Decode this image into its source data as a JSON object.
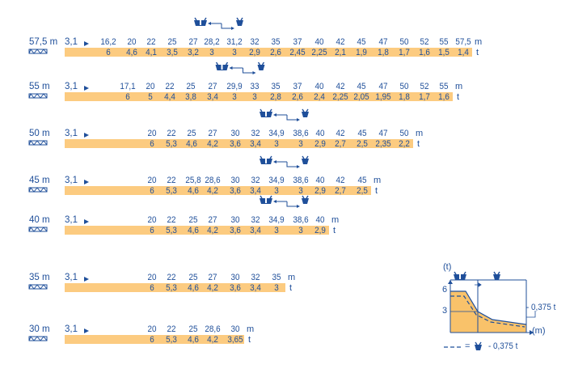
{
  "chart_data": {
    "type": "table",
    "start_radius": "3,1",
    "rows": [
      {
        "boom": "57,5 m",
        "radii": [
          "16,2",
          "20",
          "22",
          "25",
          "27",
          "28,2",
          "31,2",
          "32",
          "35",
          "37",
          "40",
          "42",
          "45",
          "47",
          "50",
          "52",
          "55",
          "57,5"
        ],
        "radius_unit": "m",
        "loads": [
          "6",
          "4,6",
          "4,1",
          "3,5",
          "3,2",
          "3",
          "3",
          "2,9",
          "2,6",
          "2,45",
          "2,25",
          "2,1",
          "1,9",
          "1,8",
          "1,7",
          "1,6",
          "1,5",
          "1,4"
        ],
        "load_unit": "t",
        "reeving_switch": [
          "28,2",
          "31,2"
        ]
      },
      {
        "boom": "55 m",
        "radii": [
          "17,1",
          "20",
          "22",
          "25",
          "27",
          "29,9",
          "33",
          "35",
          "37",
          "40",
          "42",
          "45",
          "47",
          "50",
          "52",
          "55"
        ],
        "radius_unit": "m",
        "loads": [
          "6",
          "5",
          "4,4",
          "3,8",
          "3,4",
          "3",
          "3",
          "2,8",
          "2,6",
          "2,4",
          "2,25",
          "2,05",
          "1,95",
          "1,8",
          "1,7",
          "1,6"
        ],
        "load_unit": "t",
        "reeving_switch": [
          "29,9",
          "33"
        ]
      },
      {
        "boom": "50 m",
        "radii": [
          "20",
          "22",
          "25",
          "27",
          "30",
          "32",
          "34,9",
          "38,6",
          "40",
          "42",
          "45",
          "47",
          "50"
        ],
        "radius_unit": "m",
        "loads": [
          "6",
          "5,3",
          "4,6",
          "4,2",
          "3,6",
          "3,4",
          "3",
          "3",
          "2,9",
          "2,7",
          "2,5",
          "2,35",
          "2,2"
        ],
        "load_unit": "t",
        "reeving_switch": [
          "34,9",
          "38,6"
        ]
      },
      {
        "boom": "45 m",
        "radii": [
          "20",
          "22",
          "25,8",
          "28,6",
          "30",
          "32",
          "34,9",
          "38,6",
          "40",
          "42",
          "45"
        ],
        "radius_unit": "m",
        "loads": [
          "6",
          "5,3",
          "4,6",
          "4,2",
          "3,6",
          "3,4",
          "3",
          "3",
          "2,9",
          "2,7",
          "2,5"
        ],
        "load_unit": "t",
        "reeving_switch": [
          "34,9",
          "38,6"
        ]
      },
      {
        "boom": "40 m",
        "radii": [
          "20",
          "22",
          "25",
          "27",
          "30",
          "32",
          "34,9",
          "38,6",
          "40"
        ],
        "radius_unit": "m",
        "loads": [
          "6",
          "5,3",
          "4,6",
          "4,2",
          "3,6",
          "3,4",
          "3",
          "3",
          "2,9"
        ],
        "load_unit": "t",
        "reeving_switch": [
          "34,9",
          "38,6"
        ]
      },
      {
        "boom": "35 m",
        "radii": [
          "20",
          "22",
          "25",
          "27",
          "30",
          "32",
          "35"
        ],
        "radius_unit": "m",
        "loads": [
          "6",
          "5,3",
          "4,6",
          "4,2",
          "3,6",
          "3,4",
          "3"
        ],
        "load_unit": "t",
        "reeving_switch": []
      },
      {
        "boom": "30 m",
        "radii": [
          "20",
          "22",
          "25",
          "28,6",
          "30"
        ],
        "radius_unit": "m",
        "loads": [
          "6",
          "5,3",
          "4,6",
          "4,2",
          "3,65"
        ],
        "load_unit": "t",
        "reeving_switch": []
      }
    ]
  },
  "legend_graph": {
    "y_axis_label": "(t)",
    "x_axis_label": "(m)",
    "y_ticks": [
      "6",
      "3"
    ],
    "reduced_note": "- 0,375 t",
    "legend_text": "= ",
    "legend_value": "- 0,375 t"
  },
  "colors": {
    "blue": "#1f4f9a",
    "band": "#fccb80",
    "fill": "#f9c26a"
  },
  "icons": {
    "boom_icon": "lattice-jib-icon",
    "double_trolley": "double-trolley-icon",
    "single_trolley": "single-trolley-icon",
    "start_arrow": "arrow-right-icon"
  }
}
